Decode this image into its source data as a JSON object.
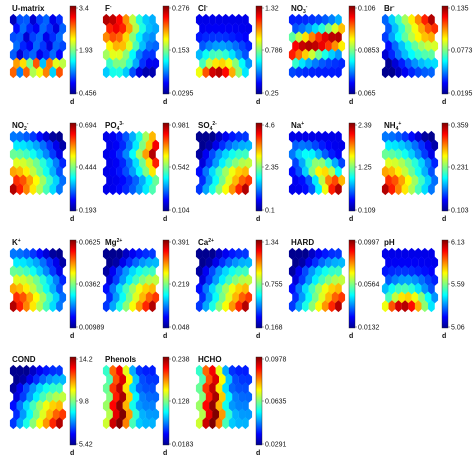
{
  "figure": {
    "title": ""
  },
  "chart_data": [
    {
      "type": "heatmap",
      "variable": "U-matrix",
      "title": "U-matrix",
      "colorbar_ticks": [
        "3.4",
        "1.93",
        "0.456"
      ],
      "colorbar_label": "d",
      "range": [
        0.456,
        3.4
      ],
      "pattern": "umatrix"
    },
    {
      "type": "heatmap",
      "variable": "F-",
      "title": "F",
      "title_sup": "-",
      "colorbar_ticks": [
        "0.276",
        "0.153",
        "0.0295"
      ],
      "colorbar_label": "d",
      "range": [
        0.0295,
        0.276
      ],
      "pattern": "topleft"
    },
    {
      "type": "heatmap",
      "variable": "Cl-",
      "title": "Cl",
      "title_sup": "-",
      "colorbar_ticks": [
        "1.32",
        "0.786",
        "0.25"
      ],
      "colorbar_label": "d",
      "range": [
        0.25,
        1.32
      ],
      "pattern": "bottom"
    },
    {
      "type": "heatmap",
      "variable": "NO3-",
      "title": "NO",
      "title_sub": "3",
      "title_sup": "-",
      "colorbar_ticks": [
        "0.106",
        "0.0853",
        "0.065"
      ],
      "colorbar_label": "d",
      "range": [
        0.065,
        0.106
      ],
      "pattern": "band"
    },
    {
      "type": "heatmap",
      "variable": "Br-",
      "title": "Br",
      "title_sup": "-",
      "colorbar_ticks": [
        "0.135",
        "0.0773",
        "0.0195"
      ],
      "colorbar_label": "d",
      "range": [
        0.0195,
        0.135
      ],
      "pattern": "topright"
    },
    {
      "type": "heatmap",
      "variable": "NO2-",
      "title": "NO",
      "title_sub": "2",
      "title_sup": "-",
      "colorbar_ticks": [
        "0.694",
        "0.444",
        "0.193"
      ],
      "colorbar_label": "d",
      "range": [
        0.193,
        0.694
      ],
      "pattern": "bottomleft"
    },
    {
      "type": "heatmap",
      "variable": "PO4 3-",
      "title": "PO",
      "title_sub": "4",
      "title_sup": "3-",
      "colorbar_ticks": [
        "0.981",
        "0.542",
        "0.104"
      ],
      "colorbar_label": "d",
      "range": [
        0.104,
        0.981
      ],
      "pattern": "right"
    },
    {
      "type": "heatmap",
      "variable": "SO4 2-",
      "title": "SO",
      "title_sub": "4",
      "title_sup": "2-",
      "colorbar_ticks": [
        "4.6",
        "2.35",
        "0.1"
      ],
      "colorbar_label": "d",
      "range": [
        0.1,
        4.6
      ],
      "pattern": "bottomright"
    },
    {
      "type": "heatmap",
      "variable": "Na+",
      "title": "Na",
      "title_sup": "+",
      "colorbar_ticks": [
        "2.39",
        "1.25",
        "0.109"
      ],
      "colorbar_label": "d",
      "range": [
        0.109,
        2.39
      ],
      "pattern": "diagonal"
    },
    {
      "type": "heatmap",
      "variable": "NH4+",
      "title": "NH",
      "title_sub": "4",
      "title_sup": "+",
      "colorbar_ticks": [
        "0.359",
        "0.231",
        "0.103"
      ],
      "colorbar_label": "d",
      "range": [
        0.103,
        0.359
      ],
      "pattern": "bottomleft"
    },
    {
      "type": "heatmap",
      "variable": "K+",
      "title": "K",
      "title_sup": "+",
      "colorbar_ticks": [
        "0.0625",
        "0.0362",
        "0.00989"
      ],
      "colorbar_label": "d",
      "range": [
        0.00989,
        0.0625
      ],
      "pattern": "bottomleft"
    },
    {
      "type": "heatmap",
      "variable": "Mg2+",
      "title": "Mg",
      "title_sup": "2+",
      "colorbar_ticks": [
        "0.391",
        "0.219",
        "0.048"
      ],
      "colorbar_label": "d",
      "range": [
        0.048,
        0.391
      ],
      "pattern": "bottomright"
    },
    {
      "type": "heatmap",
      "variable": "Ca2+",
      "title": "Ca",
      "title_sup": "2+",
      "colorbar_ticks": [
        "1.34",
        "0.755",
        "0.168"
      ],
      "colorbar_label": "d",
      "range": [
        0.168,
        1.34
      ],
      "pattern": "bottomright"
    },
    {
      "type": "heatmap",
      "variable": "HARD",
      "title": "HARD",
      "colorbar_ticks": [
        "0.0997",
        "0.0564",
        "0.0132"
      ],
      "colorbar_label": "d",
      "range": [
        0.0132,
        0.0997
      ],
      "pattern": "bottomright"
    },
    {
      "type": "heatmap",
      "variable": "pH",
      "title": "pH",
      "colorbar_ticks": [
        "6.13",
        "5.59",
        "5.06"
      ],
      "colorbar_label": "d",
      "range": [
        5.06,
        6.13
      ],
      "pattern": "bottom"
    },
    {
      "type": "heatmap",
      "variable": "COND",
      "title": "COND",
      "colorbar_ticks": [
        "14.2",
        "9.8",
        "5.42"
      ],
      "colorbar_label": "d",
      "range": [
        5.42,
        14.2
      ],
      "pattern": "bottomright"
    },
    {
      "type": "heatmap",
      "variable": "Phenols",
      "title": "Phenols",
      "colorbar_ticks": [
        "0.238",
        "0.128",
        "0.0183"
      ],
      "colorbar_label": "d",
      "range": [
        0.0183,
        0.238
      ],
      "pattern": "leftband"
    },
    {
      "type": "heatmap",
      "variable": "HCHO",
      "title": "HCHO",
      "colorbar_ticks": [
        "0.0978",
        "0.0635",
        "0.0291"
      ],
      "colorbar_label": "d",
      "range": [
        0.0291,
        0.0978
      ],
      "pattern": "leftband"
    }
  ],
  "colormap": [
    "#00008f",
    "#0000ff",
    "#0080ff",
    "#00ffff",
    "#80ff80",
    "#ffff00",
    "#ff8000",
    "#ff0000",
    "#800000"
  ]
}
